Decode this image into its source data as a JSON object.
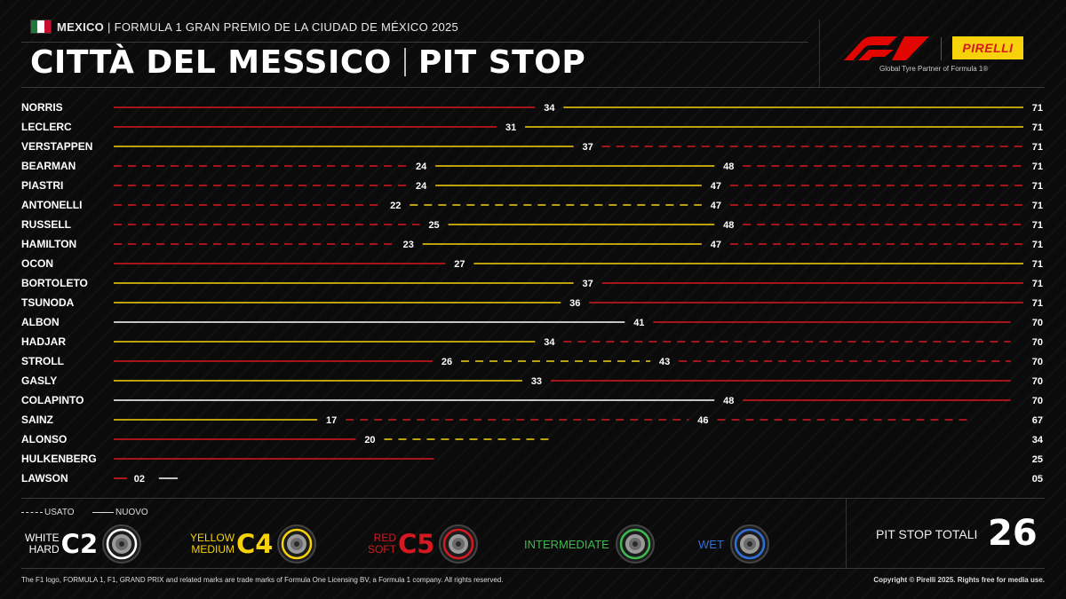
{
  "header": {
    "country": "MEXICO",
    "event": "| FORMULA 1 GRAN PREMIO DE LA CIUDAD DE MÉXICO 2025",
    "title_city": "CITTÀ DEL MESSICO",
    "title_section": "PIT STOP",
    "tagline": "Global Tyre Partner of Formula 1®",
    "pirelli": "PIRELLI"
  },
  "colors": {
    "hard": "#ffffff",
    "medium": "#f5d20a",
    "soft": "#d51920",
    "intermediate": "#3fb94e",
    "wet": "#2f6fd6",
    "label_pill": "#111111"
  },
  "chart_data": {
    "type": "bar",
    "x_range": [
      0,
      71
    ],
    "series": [
      {
        "driver": "NORRIS",
        "stints": [
          {
            "compound": "soft",
            "used": false,
            "end": 34
          },
          {
            "compound": "medium",
            "used": false,
            "end": 71
          }
        ],
        "laps_label": "71"
      },
      {
        "driver": "LECLERC",
        "stints": [
          {
            "compound": "soft",
            "used": false,
            "end": 31
          },
          {
            "compound": "medium",
            "used": false,
            "end": 71
          }
        ],
        "laps_label": "71"
      },
      {
        "driver": "VERSTAPPEN",
        "stints": [
          {
            "compound": "medium",
            "used": false,
            "end": 37
          },
          {
            "compound": "soft",
            "used": true,
            "end": 71
          }
        ],
        "laps_label": "71"
      },
      {
        "driver": "BEARMAN",
        "stints": [
          {
            "compound": "soft",
            "used": true,
            "end": 24
          },
          {
            "compound": "medium",
            "used": false,
            "end": 48
          },
          {
            "compound": "soft",
            "used": true,
            "end": 71
          }
        ],
        "laps_label": "71"
      },
      {
        "driver": "PIASTRI",
        "stints": [
          {
            "compound": "soft",
            "used": true,
            "end": 24
          },
          {
            "compound": "medium",
            "used": false,
            "end": 47
          },
          {
            "compound": "soft",
            "used": true,
            "end": 71
          }
        ],
        "laps_label": "71"
      },
      {
        "driver": "ANTONELLI",
        "stints": [
          {
            "compound": "soft",
            "used": true,
            "end": 22
          },
          {
            "compound": "medium",
            "used": true,
            "end": 47
          },
          {
            "compound": "soft",
            "used": true,
            "end": 71
          }
        ],
        "laps_label": "71"
      },
      {
        "driver": "RUSSELL",
        "stints": [
          {
            "compound": "soft",
            "used": true,
            "end": 25
          },
          {
            "compound": "medium",
            "used": false,
            "end": 48
          },
          {
            "compound": "soft",
            "used": true,
            "end": 71
          }
        ],
        "laps_label": "71"
      },
      {
        "driver": "HAMILTON",
        "stints": [
          {
            "compound": "soft",
            "used": true,
            "end": 23
          },
          {
            "compound": "medium",
            "used": false,
            "end": 47
          },
          {
            "compound": "soft",
            "used": true,
            "end": 71
          }
        ],
        "laps_label": "71"
      },
      {
        "driver": "OCON",
        "stints": [
          {
            "compound": "soft",
            "used": false,
            "end": 27
          },
          {
            "compound": "medium",
            "used": false,
            "end": 71
          }
        ],
        "laps_label": "71"
      },
      {
        "driver": "BORTOLETO",
        "stints": [
          {
            "compound": "medium",
            "used": false,
            "end": 37
          },
          {
            "compound": "soft",
            "used": false,
            "end": 71
          }
        ],
        "laps_label": "71"
      },
      {
        "driver": "TSUNODA",
        "stints": [
          {
            "compound": "medium",
            "used": false,
            "end": 36
          },
          {
            "compound": "soft",
            "used": false,
            "end": 71
          }
        ],
        "laps_label": "71"
      },
      {
        "driver": "ALBON",
        "stints": [
          {
            "compound": "hard",
            "used": false,
            "end": 41
          },
          {
            "compound": "soft",
            "used": false,
            "end": 70
          }
        ],
        "laps_label": "70"
      },
      {
        "driver": "HADJAR",
        "stints": [
          {
            "compound": "medium",
            "used": false,
            "end": 34
          },
          {
            "compound": "soft",
            "used": true,
            "end": 70
          }
        ],
        "laps_label": "70"
      },
      {
        "driver": "STROLL",
        "stints": [
          {
            "compound": "soft",
            "used": false,
            "end": 26
          },
          {
            "compound": "medium",
            "used": true,
            "end": 43
          },
          {
            "compound": "soft",
            "used": true,
            "end": 70
          }
        ],
        "laps_label": "70"
      },
      {
        "driver": "GASLY",
        "stints": [
          {
            "compound": "medium",
            "used": false,
            "end": 33
          },
          {
            "compound": "soft",
            "used": false,
            "end": 70
          }
        ],
        "laps_label": "70"
      },
      {
        "driver": "COLAPINTO",
        "stints": [
          {
            "compound": "hard",
            "used": false,
            "end": 48
          },
          {
            "compound": "soft",
            "used": false,
            "end": 70
          }
        ],
        "laps_label": "70"
      },
      {
        "driver": "SAINZ",
        "stints": [
          {
            "compound": "medium",
            "used": false,
            "end": 17
          },
          {
            "compound": "soft",
            "used": true,
            "end": 46
          },
          {
            "compound": "soft",
            "used": true,
            "end": 67
          }
        ],
        "laps_label": "67"
      },
      {
        "driver": "ALONSO",
        "stints": [
          {
            "compound": "soft",
            "used": false,
            "end": 20
          },
          {
            "compound": "medium",
            "used": true,
            "end": 34
          }
        ],
        "laps_label": "34"
      },
      {
        "driver": "HULKENBERG",
        "stints": [
          {
            "compound": "soft",
            "used": false,
            "end": 25
          }
        ],
        "laps_label": "25"
      },
      {
        "driver": "LAWSON",
        "stints": [
          {
            "compound": "soft",
            "used": false,
            "end": 2
          },
          {
            "compound": "hard",
            "used": false,
            "end": 5
          }
        ],
        "laps_label": "05",
        "stop_labels": [
          "02"
        ]
      }
    ]
  },
  "legend": {
    "used": "USATO",
    "new": "NUOVO",
    "tyres": [
      {
        "key": "hard",
        "line1": "WHITE",
        "line2": "HARD",
        "code": "C2"
      },
      {
        "key": "medium",
        "line1": "YELLOW",
        "line2": "MEDIUM",
        "code": "C4"
      },
      {
        "key": "soft",
        "line1": "RED",
        "line2": "SOFT",
        "code": "C5"
      },
      {
        "key": "intermediate",
        "name": "INTERMEDIATE"
      },
      {
        "key": "wet",
        "name": "WET"
      }
    ]
  },
  "totals": {
    "label": "PIT STOP TOTALI",
    "value": "26"
  },
  "footer": {
    "left": "The F1 logo, FORMULA 1, F1, GRAND PRIX and related marks are trade marks of Formula One Licensing BV, a Formula 1 company. All rights reserved.",
    "right": "Copyright © Pirelli 2025. Rights free for media use."
  }
}
